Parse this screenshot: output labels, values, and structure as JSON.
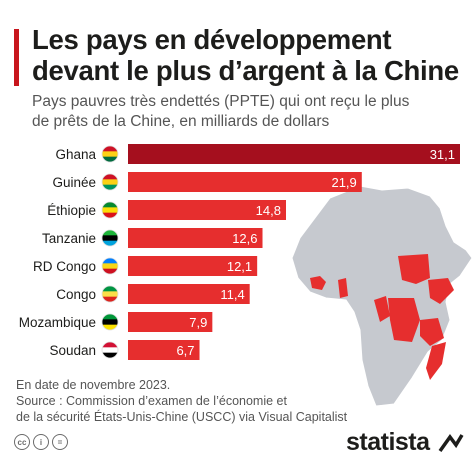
{
  "header": {
    "title_line1": "Les pays en développement",
    "title_line2": "devant le plus d’argent à la Chine",
    "subtitle_line1": "Pays pauvres très endettés (PPTE) qui ont reçu le plus",
    "subtitle_line2": "de prêts de la Chine, en milliards de dollars"
  },
  "chart_data": {
    "type": "bar",
    "orientation": "horizontal",
    "categories": [
      "Ghana",
      "Guinée",
      "Éthiopie",
      "Tanzanie",
      "RD Congo",
      "Congo",
      "Mozambique",
      "Soudan"
    ],
    "values": [
      31.1,
      21.9,
      14.8,
      12.6,
      12.1,
      11.4,
      7.9,
      6.7
    ],
    "value_labels": [
      "31,1",
      "21,9",
      "14,8",
      "12,6",
      "12,1",
      "11,4",
      "7,9",
      "6,7"
    ],
    "colors": {
      "top_bar": "#a50f1e",
      "bar": "#e62e2e",
      "map_land": "#c6c9cf",
      "map_highlight": "#e62e2e"
    }
  },
  "footer": {
    "note": "En date de novembre 2023.",
    "source_line1": "Source : Commission d’examen de l’économie et",
    "source_line2": "de la sécurité États-Unis-Chine (USCC) via Visual Capitalist",
    "brand": "statista",
    "icons": [
      "cc-icon",
      "attribution-icon",
      "noderivs-icon"
    ]
  }
}
